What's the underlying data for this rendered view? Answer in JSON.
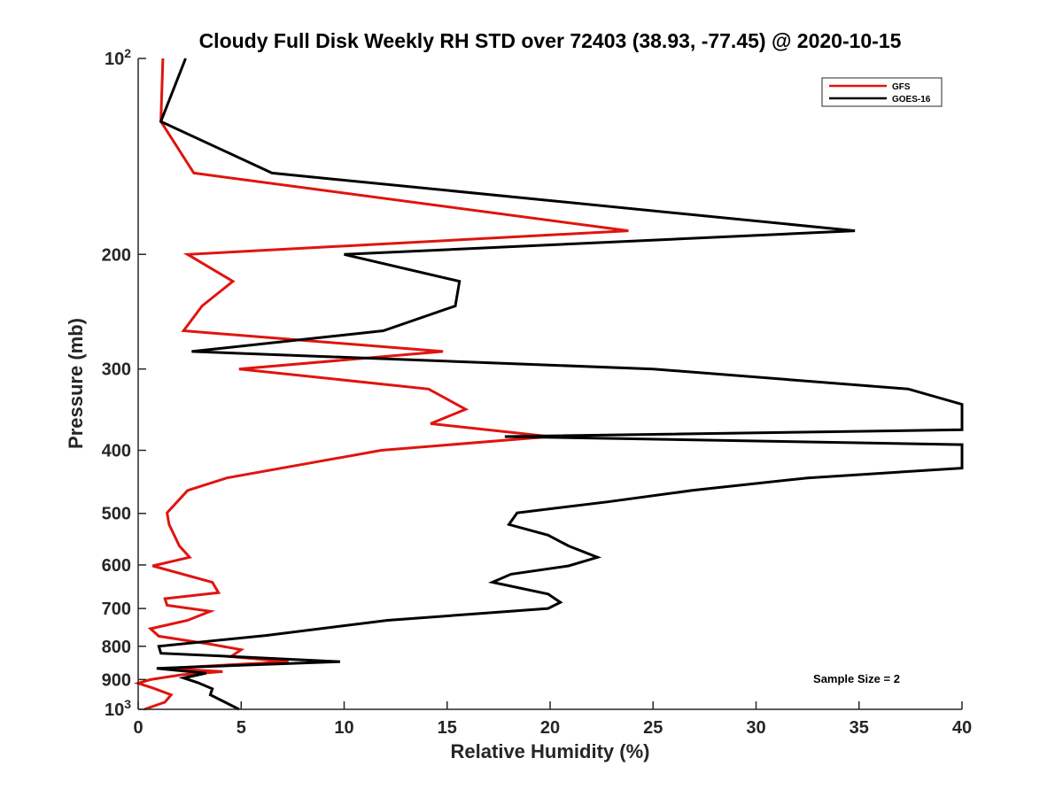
{
  "chart_data": {
    "type": "line",
    "title": "Cloudy Full Disk Weekly RH STD over 72403 (38.93, -77.45) @ 2020-10-15",
    "xlabel": "Relative Humidity (%)",
    "ylabel": "Pressure (mb)",
    "xlim": [
      0,
      40
    ],
    "ylim": [
      100,
      1000
    ],
    "y_scale": "log",
    "y_reversed": true,
    "grid": false,
    "legend_position": "top-right",
    "x_ticks": [
      "0",
      "5",
      "10",
      "15",
      "20",
      "25",
      "30",
      "35",
      "40"
    ],
    "y_ticks": [
      {
        "value": 100,
        "base": "10",
        "exp": "2"
      },
      {
        "value": 200,
        "label": "200"
      },
      {
        "value": 300,
        "label": "300"
      },
      {
        "value": 400,
        "label": "400"
      },
      {
        "value": 500,
        "label": "500"
      },
      {
        "value": 600,
        "label": "600"
      },
      {
        "value": 700,
        "label": "700"
      },
      {
        "value": 800,
        "label": "800"
      },
      {
        "value": 900,
        "label": "900"
      },
      {
        "value": 1000,
        "base": "10",
        "exp": "3"
      }
    ],
    "series": [
      {
        "name": "GFS",
        "color": "#e0140f",
        "points": [
          [
            1.2,
            100
          ],
          [
            1.1,
            125
          ],
          [
            2.7,
            150
          ],
          [
            23.8,
            184
          ],
          [
            2.4,
            200
          ],
          [
            4.6,
            220
          ],
          [
            3.1,
            240
          ],
          [
            2.2,
            262
          ],
          [
            14.8,
            282
          ],
          [
            4.9,
            300
          ],
          [
            14.1,
            322
          ],
          [
            15.9,
            346
          ],
          [
            14.2,
            364
          ],
          [
            20.0,
            381
          ],
          [
            11.8,
            400
          ],
          [
            4.3,
            441
          ],
          [
            2.4,
            461
          ],
          [
            1.4,
            499
          ],
          [
            1.5,
            520
          ],
          [
            2.0,
            561
          ],
          [
            2.5,
            584
          ],
          [
            0.7,
            602
          ],
          [
            3.6,
            638
          ],
          [
            3.9,
            662
          ],
          [
            1.3,
            676
          ],
          [
            1.4,
            692
          ],
          [
            3.5,
            707
          ],
          [
            2.4,
            730
          ],
          [
            0.6,
            752
          ],
          [
            1.0,
            772
          ],
          [
            3.6,
            795
          ],
          [
            5.0,
            810
          ],
          [
            4.5,
            830
          ],
          [
            7.3,
            845
          ],
          [
            1.3,
            865
          ],
          [
            4.1,
            875
          ],
          [
            2.1,
            885
          ],
          [
            0.6,
            900
          ],
          [
            0.0,
            912
          ],
          [
            0.7,
            927
          ],
          [
            1.6,
            950
          ],
          [
            1.3,
            975
          ],
          [
            0.3,
            1000
          ]
        ]
      },
      {
        "name": "GOES-16",
        "color": "#000000",
        "points": [
          [
            2.3,
            100
          ],
          [
            1.1,
            125
          ],
          [
            6.5,
            150
          ],
          [
            34.8,
            184
          ],
          [
            10.0,
            200
          ],
          [
            15.6,
            220
          ],
          [
            15.4,
            240
          ],
          [
            11.9,
            262
          ],
          [
            2.6,
            282
          ],
          [
            25.0,
            300
          ],
          [
            37.4,
            322
          ],
          [
            40.0,
            340
          ],
          [
            40.0,
            372
          ],
          [
            17.8,
            381
          ],
          [
            40.0,
            392
          ],
          [
            40.0,
            426
          ],
          [
            32.5,
            441
          ],
          [
            26.9,
            461
          ],
          [
            22.8,
            480
          ],
          [
            18.4,
            499
          ],
          [
            18.0,
            520
          ],
          [
            19.9,
            540
          ],
          [
            20.9,
            561
          ],
          [
            22.3,
            584
          ],
          [
            20.9,
            602
          ],
          [
            18.1,
            620
          ],
          [
            17.2,
            638
          ],
          [
            19.9,
            665
          ],
          [
            20.5,
            685
          ],
          [
            19.9,
            700
          ],
          [
            12.1,
            730
          ],
          [
            6.2,
            770
          ],
          [
            1.0,
            800
          ],
          [
            1.1,
            820
          ],
          [
            4.7,
            830
          ],
          [
            9.8,
            845
          ],
          [
            0.9,
            865
          ],
          [
            3.3,
            880
          ],
          [
            2.2,
            895
          ],
          [
            2.9,
            910
          ],
          [
            3.6,
            930
          ],
          [
            3.5,
            950
          ],
          [
            4.9,
            1000
          ]
        ]
      }
    ],
    "annotation": "Sample Size = 2"
  }
}
